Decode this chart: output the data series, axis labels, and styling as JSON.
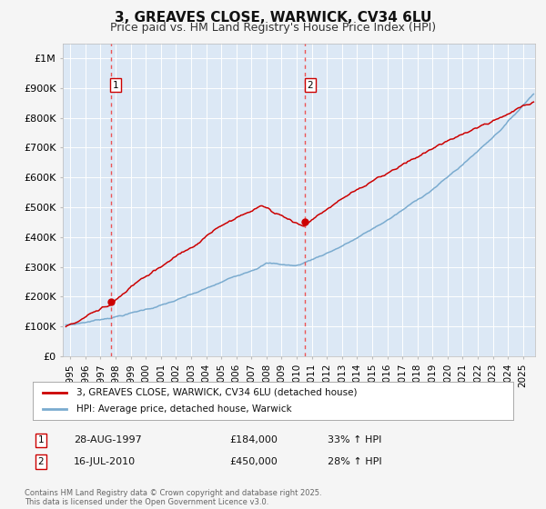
{
  "title": "3, GREAVES CLOSE, WARWICK, CV34 6LU",
  "subtitle": "Price paid vs. HM Land Registry's House Price Index (HPI)",
  "ylim": [
    0,
    1050000
  ],
  "xlim_start": 1994.5,
  "xlim_end": 2025.8,
  "yticks": [
    0,
    100000,
    200000,
    300000,
    400000,
    500000,
    600000,
    700000,
    800000,
    900000,
    1000000
  ],
  "ytick_labels": [
    "£0",
    "£100K",
    "£200K",
    "£300K",
    "£400K",
    "£500K",
    "£600K",
    "£700K",
    "£800K",
    "£900K",
    "£1M"
  ],
  "plot_bg_color": "#dce8f5",
  "grid_color": "#ffffff",
  "title_fontsize": 11,
  "subtitle_fontsize": 9,
  "t1_yr": 1997.667,
  "t1_price": 184000,
  "t2_yr": 2010.542,
  "t2_price": 450000,
  "legend_label1": "3, GREAVES CLOSE, WARWICK, CV34 6LU (detached house)",
  "legend_label2": "HPI: Average price, detached house, Warwick",
  "footnote": "Contains HM Land Registry data © Crown copyright and database right 2025.\nThis data is licensed under the Open Government Licence v3.0.",
  "line_color_red": "#cc0000",
  "line_color_blue": "#7aabcf",
  "dashed_line_color": "#ee4444",
  "row1": [
    "1",
    "28-AUG-1997",
    "£184,000",
    "33% ↑ HPI"
  ],
  "row2": [
    "2",
    "16-JUL-2010",
    "£450,000",
    "28% ↑ HPI"
  ]
}
